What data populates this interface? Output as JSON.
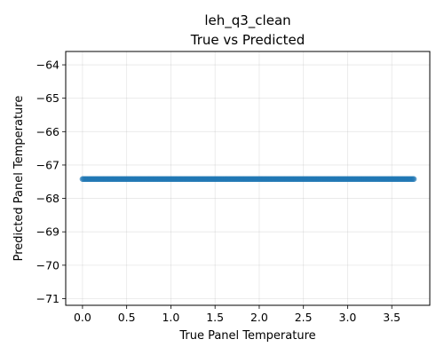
{
  "chart_data": {
    "type": "scatter",
    "title": "leh_q3_clean",
    "subtitle": "True vs Predicted",
    "xlabel": "True Panel Temperature",
    "ylabel": "Predicted Panel Temperature",
    "xlim": [
      -0.19,
      3.93
    ],
    "ylim": [
      -71.2,
      -63.6
    ],
    "xticks": [
      0.0,
      0.5,
      1.0,
      1.5,
      2.0,
      2.5,
      3.0,
      3.5
    ],
    "xtick_labels": [
      "0.0",
      "0.5",
      "1.0",
      "1.5",
      "2.0",
      "2.5",
      "3.0",
      "3.5"
    ],
    "yticks": [
      -64,
      -65,
      -66,
      -67,
      -68,
      -69,
      -70,
      -71
    ],
    "ytick_labels": [
      "−64",
      "−65",
      "−66",
      "−67",
      "−68",
      "−69",
      "−70",
      "−71"
    ],
    "grid": true,
    "point_color": "#1f77b4",
    "point_alpha": 0.6,
    "series": [
      {
        "x_min": 0.0,
        "x_max": 3.75,
        "x_step": 0.0125,
        "y_constant": -67.42
      }
    ]
  }
}
